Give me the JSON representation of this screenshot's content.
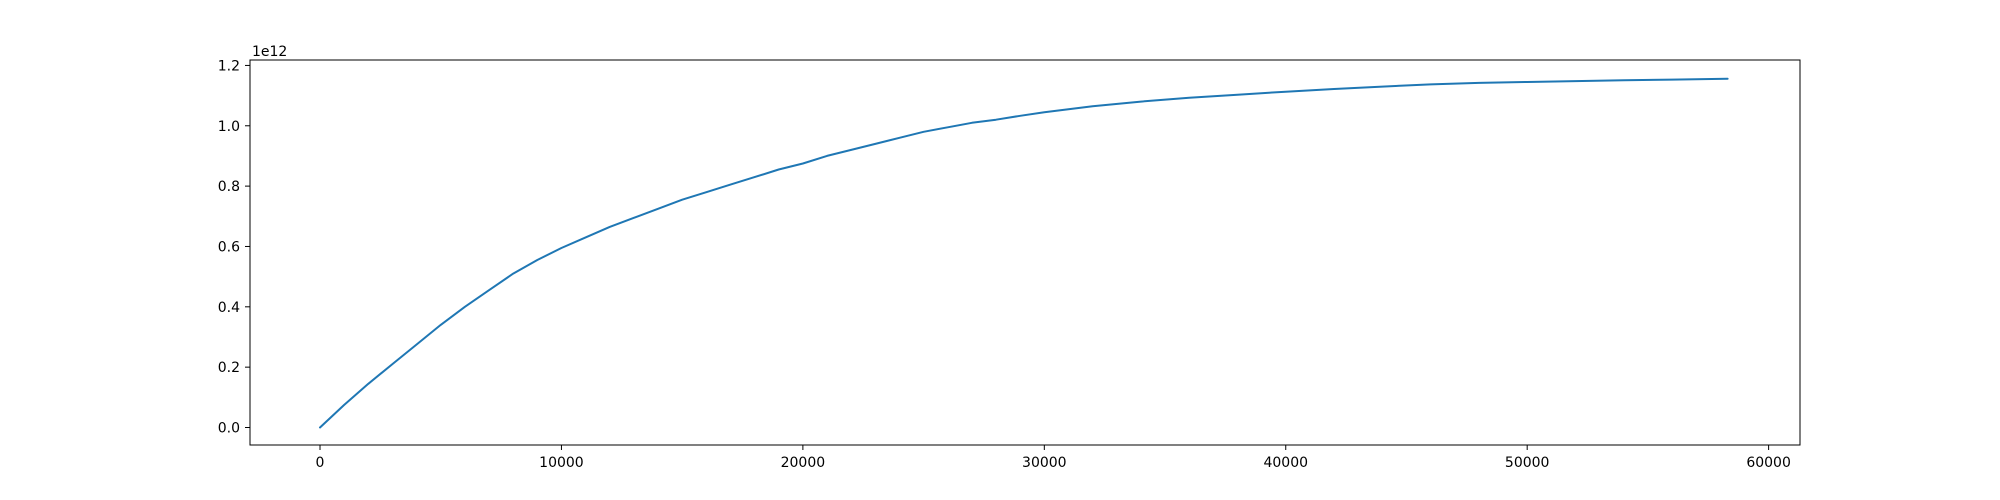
{
  "chart_data": {
    "type": "line",
    "title": "",
    "xlabel": "",
    "ylabel": "",
    "xlim": [
      -2900,
      61300
    ],
    "ylim": [
      -0.058,
      1.218
    ],
    "y_offset_label": "1e12",
    "x_ticks": [
      0,
      10000,
      20000,
      30000,
      40000,
      50000,
      60000
    ],
    "x_tick_labels": [
      "0",
      "10000",
      "20000",
      "30000",
      "40000",
      "50000",
      "60000"
    ],
    "y_ticks": [
      0.0,
      0.2,
      0.4,
      0.6,
      0.8,
      1.0,
      1.2
    ],
    "y_tick_labels": [
      "0.0",
      "0.2",
      "0.4",
      "0.6",
      "0.8",
      "1.0",
      "1.2"
    ],
    "grid": false,
    "series": [
      {
        "color": "#1f77b4",
        "x": [
          0,
          1000,
          2000,
          3000,
          4000,
          5000,
          6000,
          7000,
          8000,
          9000,
          10000,
          11000,
          12000,
          13000,
          14000,
          15000,
          16000,
          17000,
          18000,
          19000,
          20000,
          21000,
          22000,
          23000,
          24000,
          25000,
          26000,
          27000,
          28000,
          29000,
          30000,
          32000,
          34000,
          36000,
          38000,
          40000,
          42000,
          44000,
          46000,
          48000,
          50000,
          52000,
          54000,
          56000,
          58300
        ],
        "values": [
          0.0,
          0.075,
          0.145,
          0.21,
          0.275,
          0.34,
          0.4,
          0.455,
          0.51,
          0.555,
          0.595,
          0.63,
          0.665,
          0.695,
          0.725,
          0.755,
          0.78,
          0.805,
          0.83,
          0.855,
          0.875,
          0.9,
          0.92,
          0.94,
          0.96,
          0.98,
          0.995,
          1.01,
          1.02,
          1.033,
          1.045,
          1.065,
          1.08,
          1.093,
          1.103,
          1.113,
          1.122,
          1.13,
          1.137,
          1.142,
          1.145,
          1.148,
          1.151,
          1.153,
          1.156
        ]
      }
    ]
  }
}
